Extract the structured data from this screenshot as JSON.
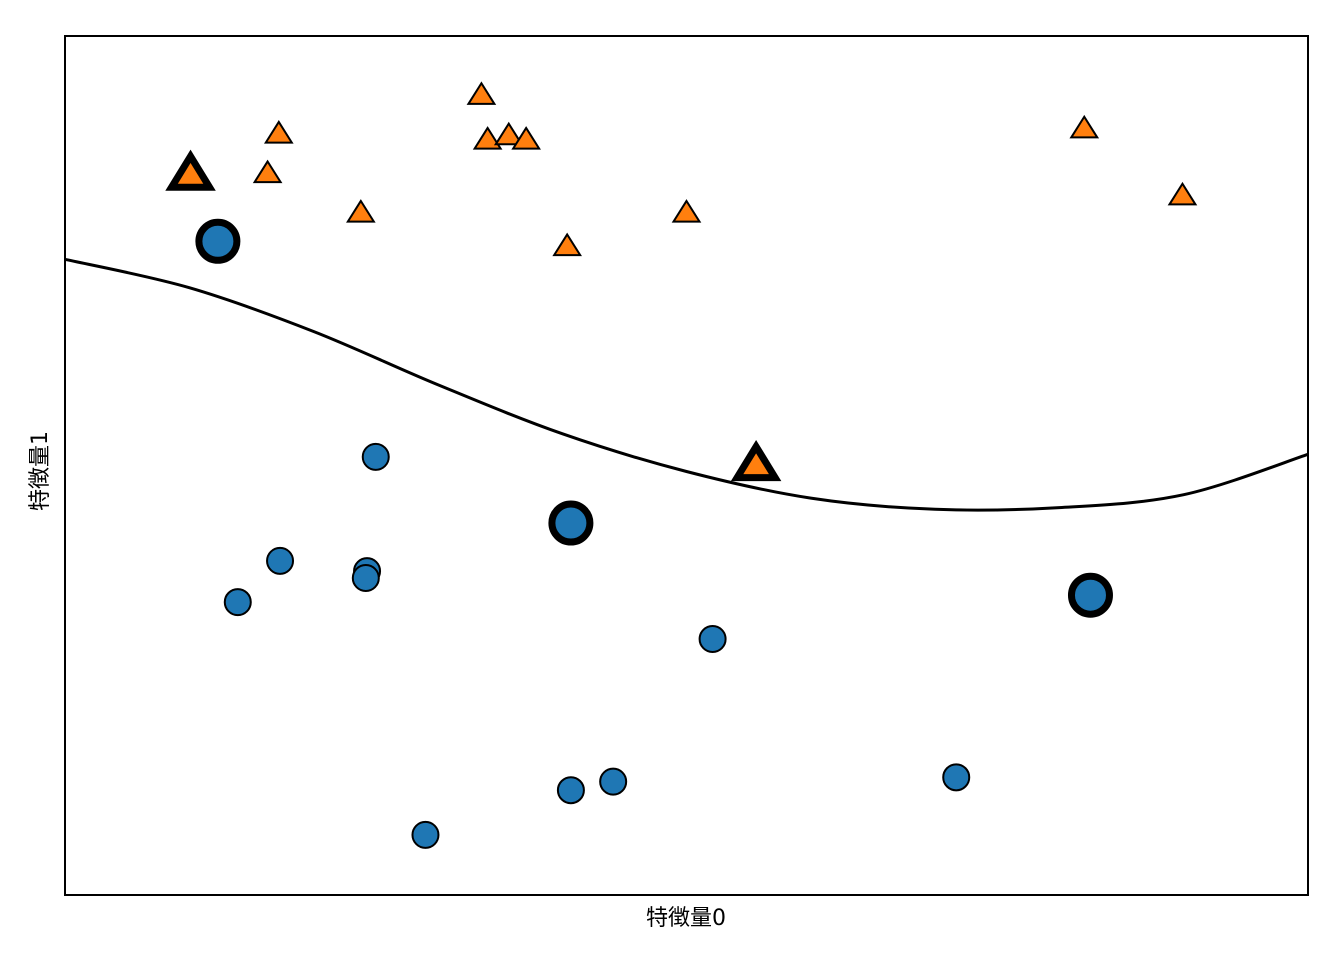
{
  "chart_data": {
    "type": "scatter",
    "title": "",
    "xlabel": "特徴量0",
    "ylabel": "特徴量1",
    "xlim": [
      0,
      100
    ],
    "ylim": [
      0,
      100
    ],
    "ticks_visible": false,
    "grid": false,
    "legend": "none",
    "colors": {
      "class0": "#1f77b4",
      "class1": "#ff7f0e",
      "edge": "#000000",
      "boundary": "#000000"
    },
    "series": [
      {
        "marker": "circle",
        "color": "#1f77b4",
        "points": [
          [
            12.3,
            76.1
          ],
          [
            25.0,
            51.0
          ],
          [
            17.3,
            38.9
          ],
          [
            24.3,
            37.7
          ],
          [
            24.2,
            36.9
          ],
          [
            13.9,
            34.1
          ],
          [
            40.7,
            43.3
          ],
          [
            52.1,
            29.8
          ],
          [
            29.0,
            7.0
          ],
          [
            40.7,
            12.2
          ],
          [
            44.1,
            13.2
          ],
          [
            71.7,
            13.7
          ],
          [
            82.5,
            34.9
          ]
        ]
      },
      {
        "marker": "triangle",
        "color": "#ff7f0e",
        "points": [
          [
            10.1,
            83.9
          ],
          [
            17.2,
            88.6
          ],
          [
            16.3,
            84.0
          ],
          [
            23.8,
            79.4
          ],
          [
            33.5,
            93.1
          ],
          [
            34.0,
            87.9
          ],
          [
            35.7,
            88.4
          ],
          [
            37.1,
            87.9
          ],
          [
            40.4,
            75.5
          ],
          [
            50.0,
            79.4
          ],
          [
            55.6,
            50.1
          ],
          [
            82.0,
            89.2
          ],
          [
            89.9,
            81.4
          ]
        ]
      }
    ],
    "support_vectors": [
      [
        12.3,
        76.1
      ],
      [
        40.7,
        43.3
      ],
      [
        82.5,
        34.9
      ],
      [
        10.1,
        83.9
      ],
      [
        55.6,
        50.1
      ]
    ],
    "decision_boundary": [
      [
        0,
        74.0
      ],
      [
        10,
        70.7
      ],
      [
        20,
        65.6
      ],
      [
        30,
        59.4
      ],
      [
        40,
        53.7
      ],
      [
        50,
        49.3
      ],
      [
        60,
        46.2
      ],
      [
        70,
        44.9
      ],
      [
        80,
        45.1
      ],
      [
        90,
        46.6
      ],
      [
        100,
        51.3
      ]
    ]
  }
}
